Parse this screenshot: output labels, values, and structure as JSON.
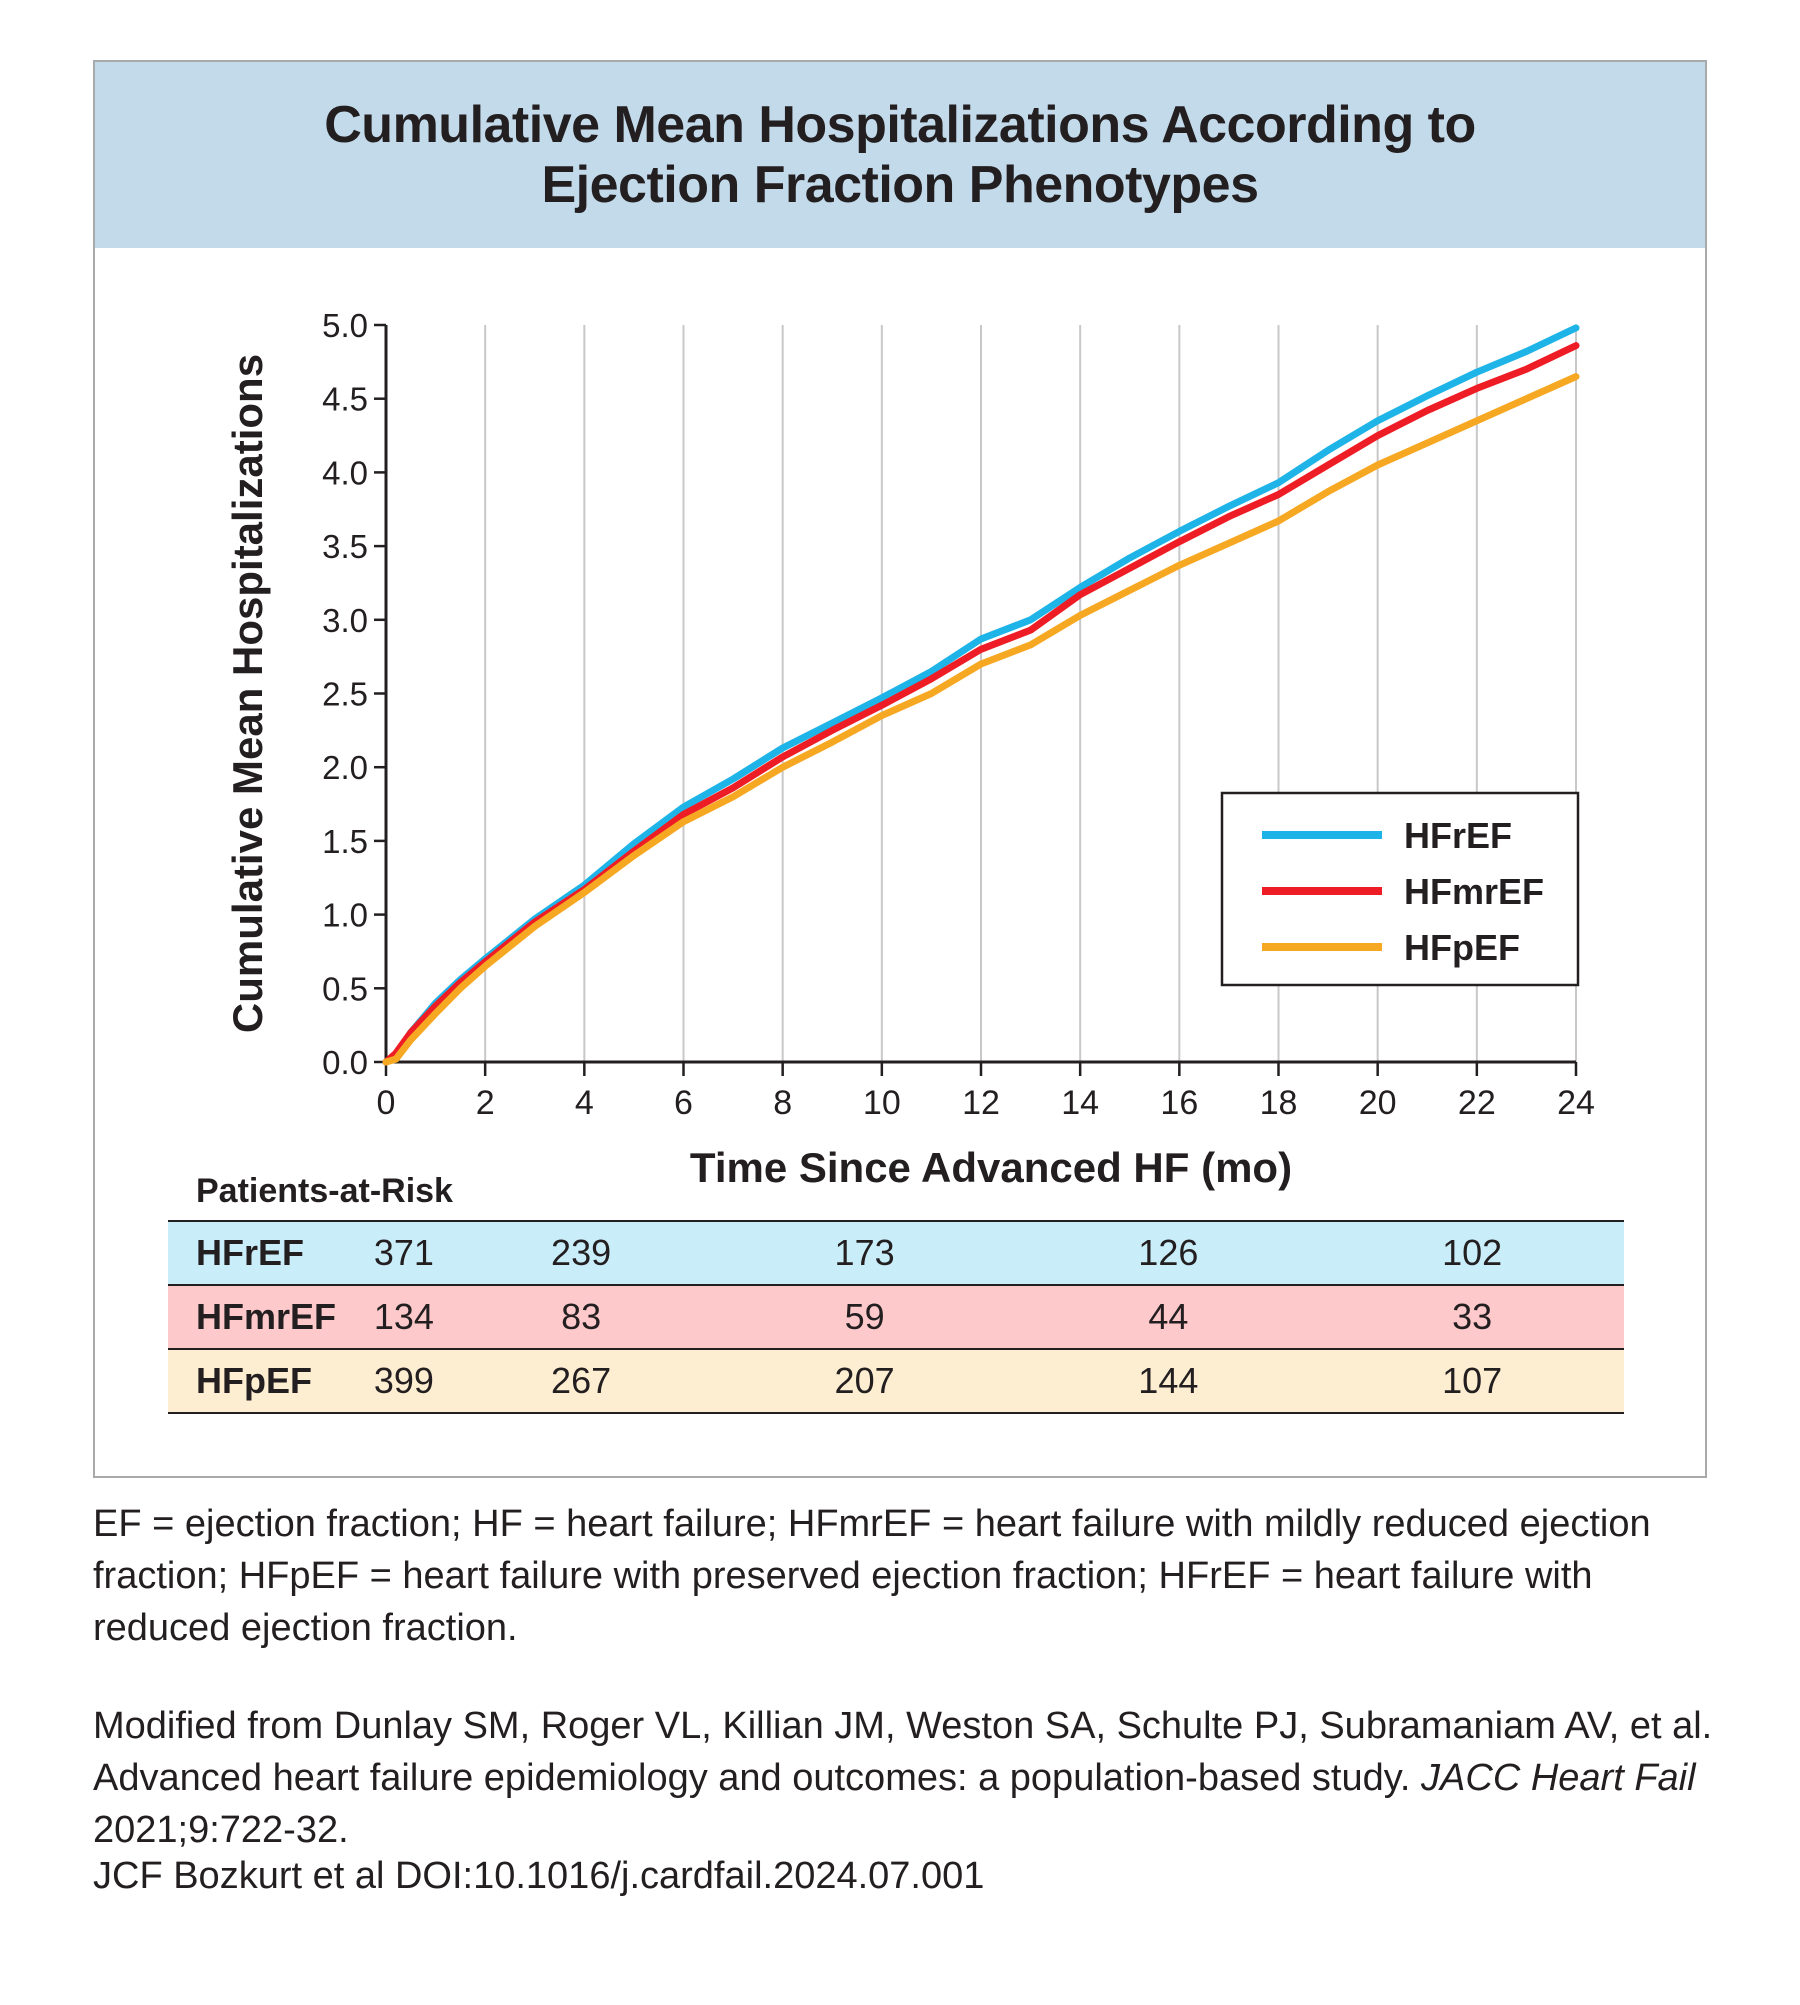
{
  "header": {
    "title_line1": "Cumulative Mean Hospitalizations According to",
    "title_line2": "Ejection Fraction Phenotypes"
  },
  "chart_data": {
    "type": "line",
    "title": "Cumulative Mean Hospitalizations According to Ejection Fraction Phenotypes",
    "xlabel": "Time Since Advanced HF (mo)",
    "ylabel": "Cumulative Mean Hospitalizations",
    "xlim": [
      0,
      24
    ],
    "ylim": [
      0,
      5.0
    ],
    "xticks": [
      "0",
      "2",
      "4",
      "6",
      "8",
      "10",
      "12",
      "14",
      "16",
      "18",
      "20",
      "22",
      "24"
    ],
    "yticks": [
      "0.0",
      "0.5",
      "1.0",
      "1.5",
      "2.0",
      "2.5",
      "3.0",
      "3.5",
      "4.0",
      "4.5",
      "5.0"
    ],
    "grid": "vertical",
    "legend_position": "lower-right",
    "series": [
      {
        "name": "HFrEF",
        "color": "#1fb4e8",
        "x": [
          0,
          0.2,
          0.5,
          1,
          1.5,
          2,
          3,
          4,
          5,
          6,
          7,
          8,
          9,
          10,
          11,
          12,
          13,
          14,
          15,
          16,
          17,
          18,
          19,
          20,
          21,
          22,
          23,
          24
        ],
        "y": [
          0,
          0.05,
          0.2,
          0.4,
          0.56,
          0.7,
          0.97,
          1.2,
          1.48,
          1.73,
          1.92,
          2.13,
          2.3,
          2.47,
          2.65,
          2.87,
          3.0,
          3.22,
          3.42,
          3.6,
          3.77,
          3.93,
          4.15,
          4.35,
          4.52,
          4.68,
          4.82,
          4.98
        ]
      },
      {
        "name": "HFmrEF",
        "color": "#ee1c25",
        "x": [
          0,
          0.2,
          0.5,
          1,
          1.5,
          2,
          3,
          4,
          5,
          6,
          7,
          8,
          9,
          10,
          11,
          12,
          13,
          14,
          15,
          16,
          17,
          18,
          19,
          20,
          21,
          22,
          23,
          24
        ],
        "y": [
          0,
          0.06,
          0.2,
          0.38,
          0.54,
          0.68,
          0.95,
          1.17,
          1.43,
          1.68,
          1.86,
          2.07,
          2.25,
          2.42,
          2.6,
          2.8,
          2.93,
          3.17,
          3.35,
          3.53,
          3.7,
          3.85,
          4.05,
          4.25,
          4.42,
          4.57,
          4.7,
          4.86
        ]
      },
      {
        "name": "HFpEF",
        "color": "#f7a823",
        "x": [
          0,
          0.2,
          0.5,
          1,
          1.5,
          2,
          3,
          4,
          5,
          6,
          7,
          8,
          9,
          10,
          11,
          12,
          13,
          14,
          15,
          16,
          17,
          18,
          19,
          20,
          21,
          22,
          23,
          24
        ],
        "y": [
          0,
          0.02,
          0.15,
          0.33,
          0.5,
          0.65,
          0.92,
          1.15,
          1.4,
          1.63,
          1.8,
          2.0,
          2.17,
          2.35,
          2.5,
          2.7,
          2.83,
          3.03,
          3.2,
          3.37,
          3.52,
          3.67,
          3.87,
          4.05,
          4.2,
          4.35,
          4.5,
          4.65
        ]
      }
    ]
  },
  "risk_table": {
    "title": "Patients-at-Risk",
    "rows": [
      {
        "label": "HFrEF",
        "bg": "#c9eefa",
        "values": [
          "371",
          "239",
          "173",
          "126",
          "102"
        ]
      },
      {
        "label": "HFmrEF",
        "bg": "#fdc9cb",
        "values": [
          "134",
          "83",
          "59",
          "44",
          "33"
        ]
      },
      {
        "label": "HFpEF",
        "bg": "#fdeed2",
        "values": [
          "399",
          "267",
          "207",
          "144",
          "107"
        ]
      }
    ]
  },
  "footnotes": {
    "abbreviations": "EF = ejection fraction; HF = heart failure; HFmrEF = heart failure with mildly reduced ejection fraction; HFpEF = heart failure with preserved ejection fraction; HFrEF = heart failure with reduced ejection fraction.",
    "source_prefix": "Modified from Dunlay SM, Roger VL, Killian JM, Weston SA, Schulte PJ, Subramaniam AV, et al. Advanced heart failure epidemiology and outcomes: a population-based study. ",
    "source_journal": "JACC Heart Fail",
    "source_suffix": " 2021;9:722-32.",
    "citation": "JCF Bozkurt et al  DOI:10.1016/j.cardfail.2024.07.001"
  }
}
